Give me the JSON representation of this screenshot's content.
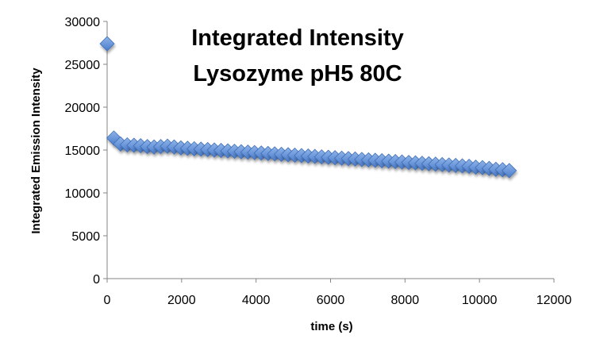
{
  "chart_data": {
    "type": "scatter",
    "title": [
      "Integrated Intensity",
      "Lysozyme pH5 80C"
    ],
    "xlabel": "time (s)",
    "ylabel": "Integrated Emission Intensity",
    "xlim": [
      0,
      12000
    ],
    "ylim": [
      0,
      30000
    ],
    "xticks": [
      "0",
      "2000",
      "4000",
      "6000",
      "8000",
      "10000",
      "12000"
    ],
    "yticks": [
      "0",
      "5000",
      "10000",
      "15000",
      "20000",
      "25000",
      "30000"
    ],
    "grid": false,
    "legend": "none",
    "marker": "diamond",
    "color": "#4f81bd",
    "series": [
      {
        "x": [
          0,
          180,
          360,
          540,
          720,
          900,
          1080,
          1260,
          1440,
          1620,
          1800,
          1980,
          2160,
          2340,
          2520,
          2700,
          2880,
          3060,
          3240,
          3420,
          3600,
          3780,
          3960,
          4140,
          4320,
          4500,
          4680,
          4860,
          5040,
          5220,
          5400,
          5580,
          5760,
          5940,
          6120,
          6300,
          6480,
          6660,
          6840,
          7020,
          7200,
          7380,
          7560,
          7740,
          7920,
          8100,
          8280,
          8460,
          8640,
          8820,
          9000,
          9180,
          9360,
          9540,
          9720,
          9900,
          10080,
          10260,
          10440,
          10620,
          10800
        ],
        "y": [
          27400,
          16400,
          15700,
          15600,
          15550,
          15500,
          15400,
          15350,
          15400,
          15450,
          15350,
          15250,
          15200,
          15150,
          15100,
          15050,
          15000,
          14950,
          14900,
          14850,
          14800,
          14750,
          14700,
          14650,
          14600,
          14550,
          14500,
          14450,
          14400,
          14350,
          14300,
          14250,
          14200,
          14150,
          14100,
          14050,
          14000,
          13950,
          13900,
          13850,
          13800,
          13750,
          13700,
          13650,
          13600,
          13550,
          13500,
          13450,
          13400,
          13350,
          13300,
          13250,
          13200,
          13150,
          13100,
          13000,
          12950,
          12850,
          12750,
          12700,
          12600
        ]
      }
    ]
  }
}
